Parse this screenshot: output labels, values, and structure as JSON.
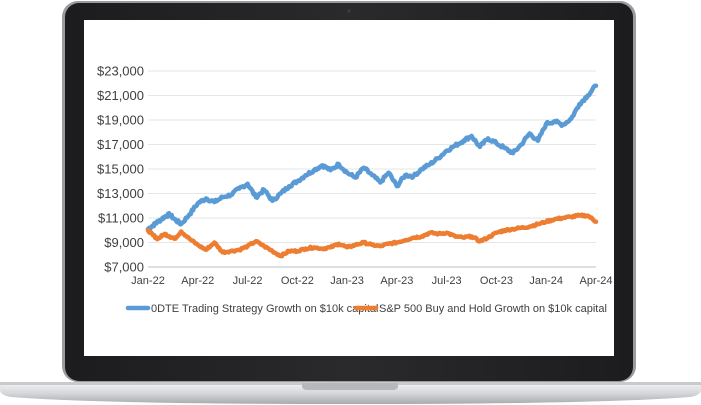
{
  "chart_data": {
    "type": "line",
    "title": "",
    "xlabel": "",
    "ylabel": "",
    "ylim": [
      7000,
      23000
    ],
    "y_ticks": [
      "$7,000",
      "$9,000",
      "$11,000",
      "$13,000",
      "$15,000",
      "$17,000",
      "$19,000",
      "$21,000",
      "$23,000"
    ],
    "y_tick_values": [
      7000,
      9000,
      11000,
      13000,
      15000,
      17000,
      19000,
      21000,
      23000
    ],
    "x_ticks": [
      "Jan-22",
      "Apr-22",
      "Jul-22",
      "Oct-22",
      "Jan-23",
      "Apr-23",
      "Jul-23",
      "Oct-23",
      "Jan-24",
      "Apr-24"
    ],
    "grid": true,
    "legend_position": "bottom",
    "series": [
      {
        "name": "0DTE Trading Strategy Growth on $10k capital",
        "color": "#5B9BD5",
        "x": [
          0,
          0.3,
          0.6,
          1,
          1.3,
          1.6,
          2,
          2.5,
          3,
          3.5,
          4,
          4.5,
          5,
          5.5,
          6,
          6.5,
          7,
          7.5,
          8,
          8.5,
          9,
          9.5,
          10,
          10.5,
          11,
          11.5,
          12,
          12.5,
          13,
          13.5,
          14,
          14.5,
          15,
          15.5,
          16,
          16.5,
          17,
          17.5,
          18,
          18.5,
          19,
          19.5,
          20,
          20.5,
          21,
          21.5,
          22,
          22.5,
          23,
          23.5,
          24,
          24.5,
          25,
          25.5,
          26,
          26.5,
          27
        ],
        "values": [
          10100,
          10400,
          10700,
          11100,
          11300,
          10900,
          10500,
          11300,
          12200,
          12600,
          12300,
          12700,
          12900,
          13400,
          13800,
          12700,
          13300,
          12400,
          13000,
          13600,
          14000,
          14500,
          14900,
          15300,
          14900,
          15400,
          14700,
          14300,
          15100,
          14500,
          13900,
          14700,
          13600,
          14500,
          14400,
          15000,
          15400,
          15900,
          16500,
          16900,
          17300,
          17700,
          16800,
          17500,
          17100,
          16700,
          16300,
          17000,
          17900,
          17300,
          18700,
          18900,
          18600,
          19100,
          20300,
          21000,
          21800
        ]
      },
      {
        "name": "S&P 500 Buy and Hold Growth on $10k capital",
        "color": "#ED7D31",
        "x": [
          0,
          0.3,
          0.6,
          1,
          1.3,
          1.6,
          2,
          2.5,
          3,
          3.5,
          4,
          4.5,
          5,
          5.5,
          6,
          6.5,
          7,
          7.5,
          8,
          8.5,
          9,
          9.5,
          10,
          10.5,
          11,
          11.5,
          12,
          12.5,
          13,
          13.5,
          14,
          14.5,
          15,
          15.5,
          16,
          16.5,
          17,
          17.5,
          18,
          18.5,
          19,
          19.5,
          20,
          20.5,
          21,
          21.5,
          22,
          22.5,
          23,
          23.5,
          24,
          24.5,
          25,
          25.5,
          26,
          26.5,
          27
        ],
        "values": [
          10000,
          9600,
          9300,
          9700,
          9500,
          9300,
          9900,
          9300,
          8800,
          8400,
          9000,
          8200,
          8300,
          8400,
          8700,
          9100,
          8700,
          8300,
          7900,
          8300,
          8300,
          8500,
          8600,
          8500,
          8600,
          8900,
          8600,
          8800,
          9000,
          8800,
          8700,
          8900,
          9000,
          9200,
          9400,
          9500,
          9800,
          9700,
          9800,
          9500,
          9400,
          9500,
          9100,
          9400,
          9800,
          10000,
          10100,
          10200,
          10300,
          10500,
          10700,
          10900,
          11000,
          11100,
          11200,
          11200,
          10700
        ]
      }
    ]
  }
}
